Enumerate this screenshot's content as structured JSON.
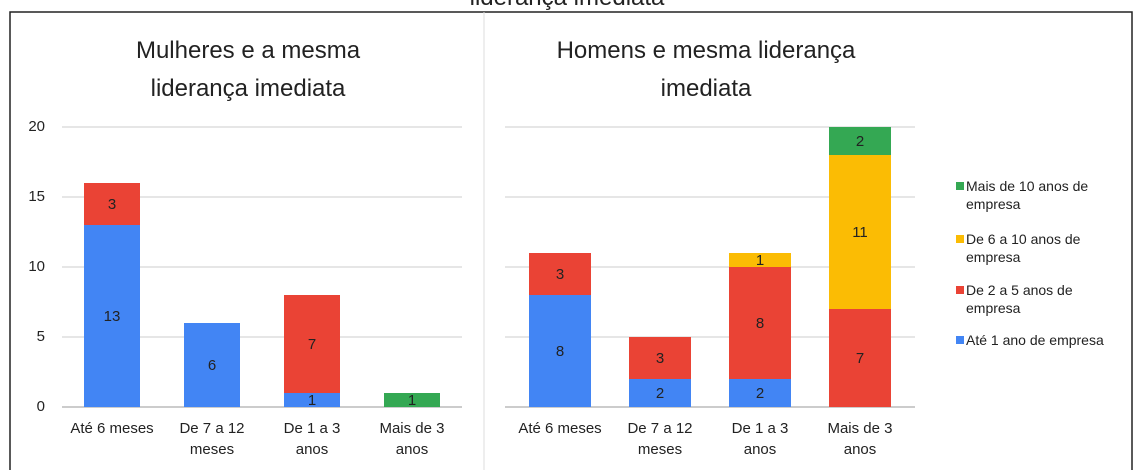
{
  "title": "liderança imediata",
  "chart_data": [
    {
      "type": "stacked_bar",
      "title": "Mulheres e a mesma liderança imediata",
      "categories": [
        "Até 6 meses",
        "De 7 a 12 meses",
        "De 1 a 3 anos",
        "Mais de 3 anos"
      ],
      "series": [
        {
          "color": "#4285f4",
          "values": [
            13,
            6,
            1,
            null
          ]
        },
        {
          "color": "#ea4335",
          "values": [
            3,
            null,
            7,
            null
          ]
        },
        {
          "color": "#fbbc04",
          "values": [
            null,
            null,
            null,
            null
          ]
        },
        {
          "color": "#34a853",
          "values": [
            null,
            null,
            null,
            1
          ]
        }
      ],
      "ylim": [
        0,
        20
      ],
      "yticks": [
        0,
        5,
        10,
        15,
        20
      ],
      "grid": true
    },
    {
      "type": "stacked_bar",
      "title": "Homens e mesma liderança imediata",
      "categories": [
        "Até 6 meses",
        "De 7 a 12 meses",
        "De 1 a 3 anos",
        "Mais de 3 anos"
      ],
      "series": [
        {
          "name": "Até 1 ano de empresa",
          "color": "#4285f4",
          "values": [
            8,
            2,
            2,
            null
          ]
        },
        {
          "name": "De 2 a 5 anos de empresa",
          "color": "#ea4335",
          "values": [
            3,
            3,
            8,
            7
          ]
        },
        {
          "name": "De 6 a 10 anos de empresa",
          "color": "#fbbc04",
          "values": [
            null,
            null,
            1,
            11
          ]
        },
        {
          "name": "Mais de 10 anos de empresa",
          "color": "#34a853",
          "values": [
            null,
            null,
            null,
            2
          ]
        }
      ],
      "ylim": [
        0,
        20
      ],
      "yticks": [
        0,
        5,
        10,
        15,
        20
      ],
      "grid": true,
      "legend": "right"
    }
  ]
}
